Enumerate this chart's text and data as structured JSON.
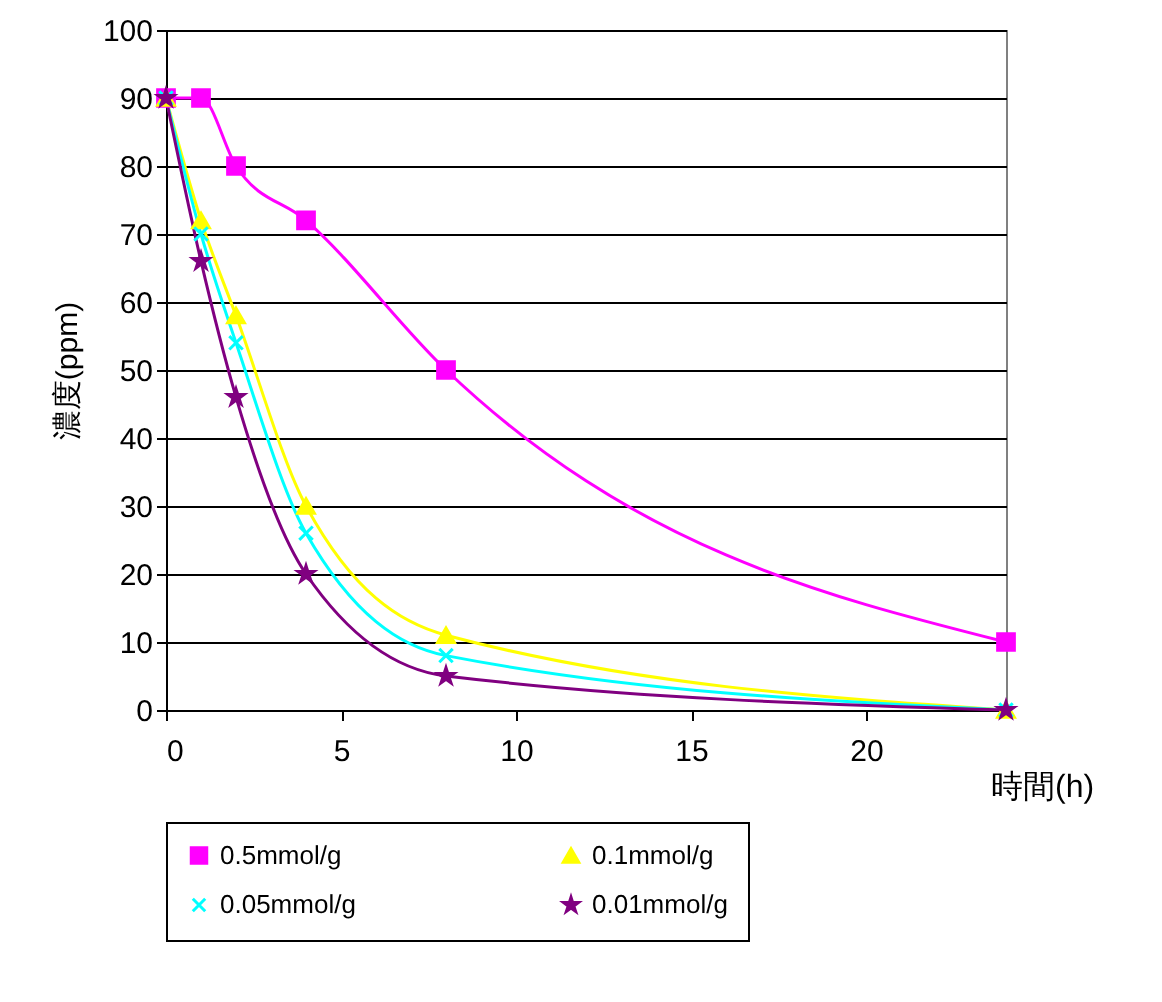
{
  "chart_data": {
    "type": "line",
    "xlabel": "時間(h)",
    "ylabel": "濃度(ppm)",
    "x": [
      0,
      1,
      2,
      4,
      8,
      24
    ],
    "series": [
      {
        "name": "0.5mmol/g",
        "color": "#ff00ff",
        "marker": "square",
        "values": [
          90,
          90,
          80,
          72,
          50,
          10
        ]
      },
      {
        "name": "0.1mmol/g",
        "color": "#ffff00",
        "marker": "triangle",
        "values": [
          90,
          72,
          58,
          30,
          11,
          0
        ]
      },
      {
        "name": "0.05mmol/g",
        "color": "#00ffff",
        "marker": "cross",
        "values": [
          90,
          70,
          54,
          26,
          8,
          0
        ]
      },
      {
        "name": "0.01mmol/g",
        "color": "#800080",
        "marker": "star",
        "values": [
          90,
          66,
          46,
          20,
          5,
          0
        ]
      }
    ],
    "xlim": [
      0,
      24
    ],
    "xticks": [
      0,
      5,
      10,
      15,
      20
    ],
    "ylim": [
      0,
      100
    ],
    "yticks": [
      0,
      10,
      20,
      30,
      40,
      50,
      60,
      70,
      80,
      90,
      100
    ],
    "grid": "y",
    "legend": "bottom",
    "line_style": "solid"
  }
}
